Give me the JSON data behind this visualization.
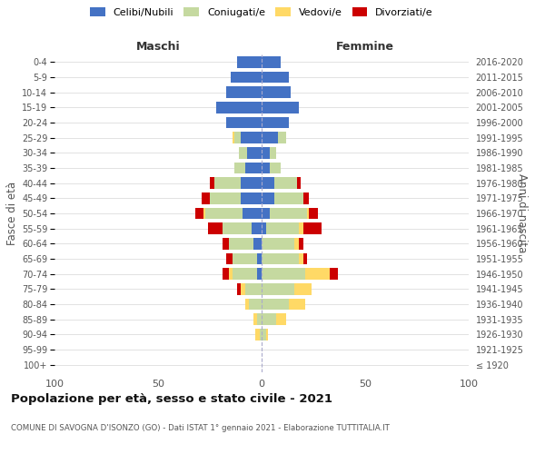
{
  "age_groups": [
    "100+",
    "95-99",
    "90-94",
    "85-89",
    "80-84",
    "75-79",
    "70-74",
    "65-69",
    "60-64",
    "55-59",
    "50-54",
    "45-49",
    "40-44",
    "35-39",
    "30-34",
    "25-29",
    "20-24",
    "15-19",
    "10-14",
    "5-9",
    "0-4"
  ],
  "birth_years": [
    "≤ 1920",
    "1921-1925",
    "1926-1930",
    "1931-1935",
    "1936-1940",
    "1941-1945",
    "1946-1950",
    "1951-1955",
    "1956-1960",
    "1961-1965",
    "1966-1970",
    "1971-1975",
    "1976-1980",
    "1981-1985",
    "1986-1990",
    "1991-1995",
    "1996-2000",
    "2001-2005",
    "2006-2010",
    "2011-2015",
    "2016-2020"
  ],
  "maschi": {
    "celibi": [
      0,
      0,
      0,
      0,
      0,
      0,
      2,
      2,
      4,
      5,
      9,
      10,
      10,
      8,
      7,
      10,
      17,
      22,
      17,
      15,
      12
    ],
    "coniugati": [
      0,
      0,
      1,
      2,
      6,
      8,
      12,
      12,
      12,
      14,
      18,
      15,
      13,
      5,
      4,
      3,
      0,
      0,
      0,
      0,
      0
    ],
    "vedovi": [
      0,
      0,
      2,
      2,
      2,
      2,
      2,
      0,
      0,
      0,
      1,
      0,
      0,
      0,
      0,
      1,
      0,
      0,
      0,
      0,
      0
    ],
    "divorziati": [
      0,
      0,
      0,
      0,
      0,
      2,
      3,
      3,
      3,
      7,
      4,
      4,
      2,
      0,
      0,
      0,
      0,
      0,
      0,
      0,
      0
    ]
  },
  "femmine": {
    "nubili": [
      0,
      0,
      0,
      0,
      0,
      0,
      0,
      0,
      0,
      2,
      4,
      6,
      6,
      4,
      4,
      8,
      13,
      18,
      14,
      13,
      9
    ],
    "coniugate": [
      0,
      0,
      2,
      7,
      13,
      16,
      21,
      18,
      16,
      16,
      18,
      14,
      11,
      5,
      3,
      4,
      0,
      0,
      0,
      0,
      0
    ],
    "vedove": [
      0,
      0,
      1,
      5,
      8,
      8,
      12,
      2,
      2,
      2,
      1,
      0,
      0,
      0,
      0,
      0,
      0,
      0,
      0,
      0,
      0
    ],
    "divorziate": [
      0,
      0,
      0,
      0,
      0,
      0,
      4,
      2,
      2,
      9,
      4,
      3,
      2,
      0,
      0,
      0,
      0,
      0,
      0,
      0,
      0
    ]
  },
  "colors": {
    "celibi": "#4472c4",
    "coniugati": "#c5d9a0",
    "vedovi": "#ffd966",
    "divorziati": "#cc0000"
  },
  "xlim": 100,
  "title": "Popolazione per età, sesso e stato civile - 2021",
  "subtitle": "COMUNE DI SAVOGNA D'ISONZO (GO) - Dati ISTAT 1° gennaio 2021 - Elaborazione TUTTITALIA.IT",
  "ylabel_left": "Fasce di età",
  "ylabel_right": "Anni di nascita",
  "xlabel_left": "Maschi",
  "xlabel_right": "Femmine",
  "background_color": "#ffffff",
  "grid_color": "#dddddd"
}
